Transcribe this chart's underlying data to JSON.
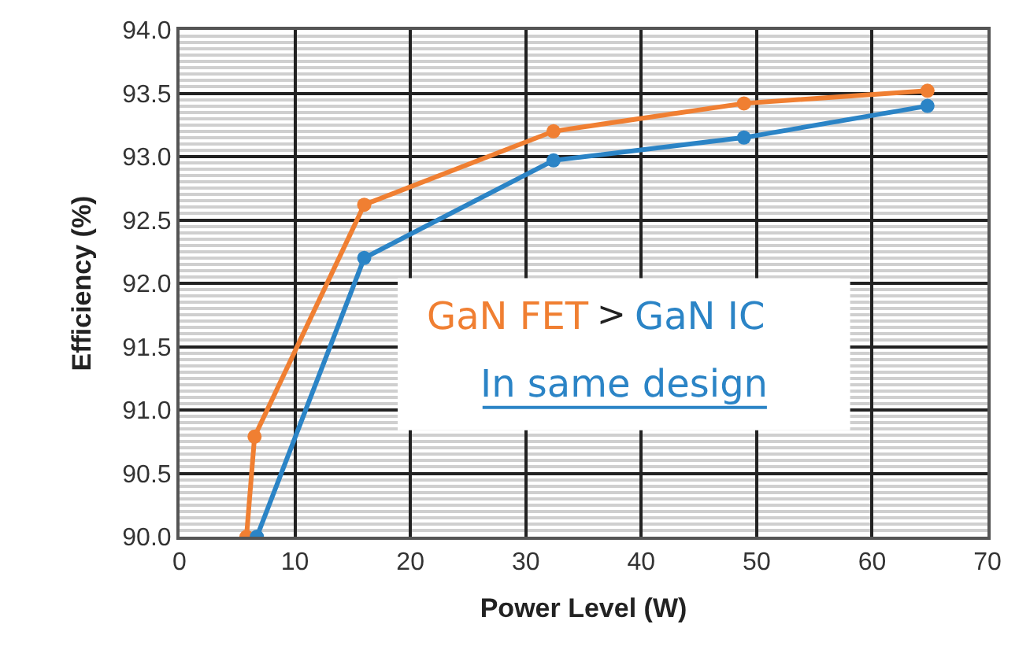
{
  "chart_data": {
    "type": "line",
    "xlabel": "Power Level (W)",
    "ylabel": "Efficiency (%)",
    "xlim": [
      0,
      70
    ],
    "xticks": [
      0,
      10,
      20,
      30,
      40,
      50,
      60,
      70
    ],
    "ylim": [
      90,
      94
    ],
    "yticks": [
      {
        "value": 90,
        "label": "90.0"
      },
      90.5,
      {
        "value": 91,
        "label": "91.0"
      },
      91.5,
      {
        "value": 92,
        "label": "92.0"
      },
      92.5,
      {
        "value": 93,
        "label": "93.0"
      },
      93.5,
      {
        "value": 94,
        "label": "94.0"
      }
    ],
    "grid": true,
    "marker": "circle",
    "legend": false,
    "series": [
      {
        "color": "#f07f32",
        "x": [
          5.8,
          6.5,
          16.0,
          32.4,
          48.9,
          64.8
        ],
        "values": [
          90.0,
          90.79,
          92.62,
          93.2,
          93.42,
          93.52
        ]
      },
      {
        "color": "#2b84c6",
        "x": [
          6.7,
          16.0,
          32.4,
          48.9,
          64.8
        ],
        "values": [
          90.0,
          92.2,
          92.97,
          93.15,
          93.4
        ]
      }
    ],
    "annotations": [
      "GaN FET",
      ">",
      "GaN IC",
      "In same design"
    ]
  }
}
